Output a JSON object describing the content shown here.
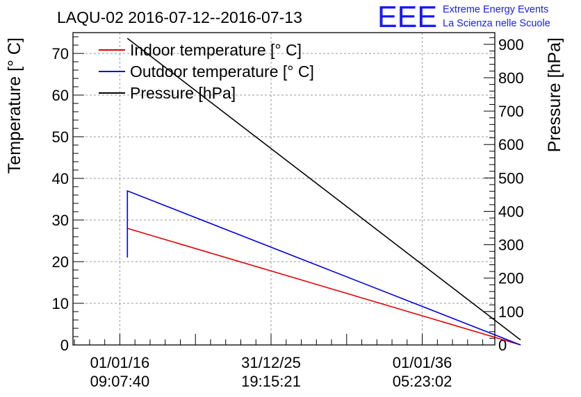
{
  "chart_data": {
    "type": "line",
    "title": "LAQU-02 2016-07-12--2016-07-13",
    "logo": {
      "text": "EEE",
      "line1": "Extreme Energy Events",
      "line2": "La Scienza nelle Scuole",
      "color": "#1a1aff"
    },
    "ylabel_left": "Temperature [° C]",
    "ylabel_right": "Pressure [hPa]",
    "ylim_left": [
      0,
      75
    ],
    "ylim_right": [
      0,
      935
    ],
    "xlim": [
      -3.1,
      24.8
    ],
    "grid": true,
    "legend_position": "top-left",
    "x_ticks": [
      {
        "x": 0,
        "date": "01/01/16",
        "time": "09:07:40"
      },
      {
        "x": 10,
        "date": "31/12/25",
        "time": "19:15:21"
      },
      {
        "x": 20,
        "date": "01/01/36",
        "time": "05:23:02"
      }
    ],
    "y_ticks_left": [
      0,
      10,
      20,
      30,
      40,
      50,
      60,
      70
    ],
    "y_ticks_right": [
      0,
      100,
      200,
      300,
      400,
      500,
      600,
      700,
      800,
      900
    ],
    "series": [
      {
        "name": "Indoor temperature [° C]",
        "axis": "left",
        "color": "#e00000",
        "points": [
          [
            0.5,
            28.0
          ],
          [
            26.5,
            0.0
          ]
        ]
      },
      {
        "name": "Outdoor temperature [° C]",
        "axis": "left",
        "color": "#0000e0",
        "points": [
          [
            0.5,
            21.0
          ],
          [
            0.5,
            37.0
          ],
          [
            26.5,
            0.0
          ]
        ]
      },
      {
        "name": "Pressure [hPa]",
        "axis": "right",
        "color": "#000000",
        "points": [
          [
            0.5,
            918
          ],
          [
            26.5,
            15
          ]
        ]
      }
    ]
  }
}
